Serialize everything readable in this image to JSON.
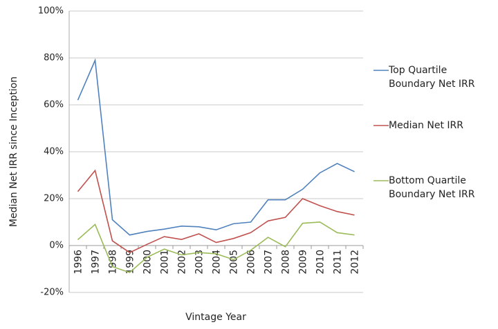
{
  "chart_data": {
    "type": "line",
    "x_label": "Vintage Year",
    "y_label": "Median Net IRR since Inception",
    "categories": [
      "1996",
      "1997",
      "1998",
      "1999",
      "2000",
      "2001",
      "2002",
      "2003",
      "2004",
      "2005",
      "2006",
      "2007",
      "2008",
      "2009",
      "2010",
      "2011",
      "2012"
    ],
    "series": [
      {
        "name": "Top Quartile Boundary Net IRR",
        "color": "#4f81bd",
        "values": [
          62,
          79,
          11,
          4.5,
          6,
          7,
          8.3,
          8,
          6.7,
          9.3,
          10,
          19.5,
          19.5,
          24,
          31,
          35,
          31.5
        ]
      },
      {
        "name": "Median Net IRR",
        "color": "#c0504d",
        "values": [
          23,
          32,
          2,
          -3,
          0.5,
          3.8,
          2.6,
          5,
          1.3,
          3,
          5.5,
          10.5,
          12,
          20,
          17,
          14.5,
          13
        ]
      },
      {
        "name": "Bottom Quartile Boundary Net IRR",
        "color": "#9bbb59",
        "values": [
          2.5,
          9,
          -9,
          -11.5,
          -5,
          -1.5,
          -4,
          -3,
          -3.5,
          -6,
          -2,
          3.5,
          -0.5,
          9.5,
          10,
          5.5,
          4.5
        ]
      }
    ],
    "ylim": [
      -20,
      100
    ],
    "yticks": [
      {
        "value": -20,
        "label": "-20%"
      },
      {
        "value": 0,
        "label": "0%"
      },
      {
        "value": 20,
        "label": "20%"
      },
      {
        "value": 40,
        "label": "40%"
      },
      {
        "value": 60,
        "label": "60%"
      },
      {
        "value": 80,
        "label": "80%"
      },
      {
        "value": 100,
        "label": "100%"
      }
    ],
    "grid": true,
    "legend": "right"
  }
}
